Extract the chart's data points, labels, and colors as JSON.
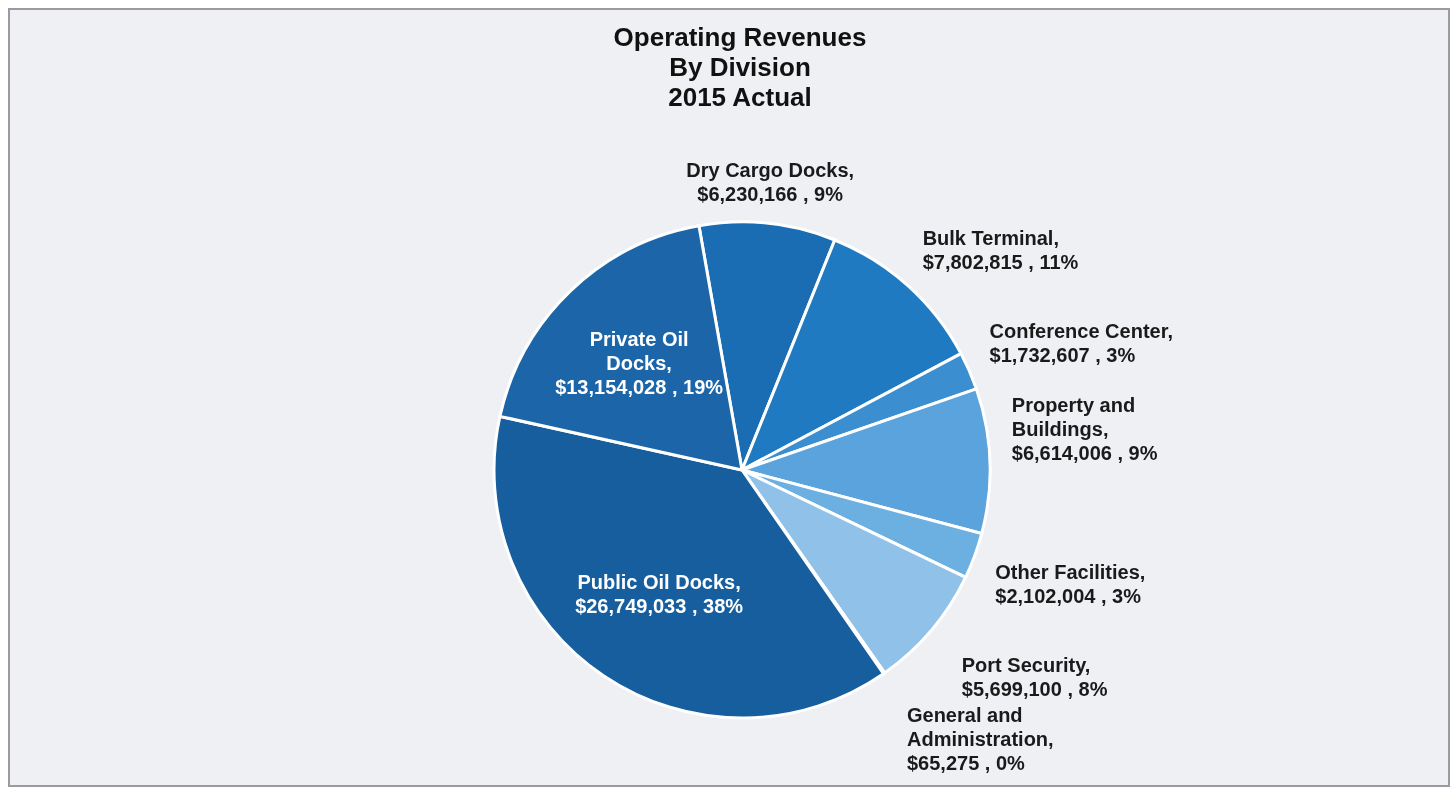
{
  "chart_data": {
    "type": "pie",
    "title": "Operating Revenues\nBy Division\n2015 Actual",
    "categories": [
      "Dry Cargo Docks",
      "Bulk Terminal",
      "Conference Center",
      "Property and Buildings",
      "Other Facilities",
      "Port Security",
      "General and Administration",
      "Public Oil Docks",
      "Private Oil Docks"
    ],
    "values": [
      6230166,
      7802815,
      1732607,
      6614006,
      2102004,
      5699100,
      65275,
      26749033,
      13154028
    ],
    "value_labels": [
      ", $6,230,166 , 9%",
      ", $7,802,815 , 11%",
      ", $1,732,607 , 3%",
      ", $6,614,006 , 9%",
      ", $2,102,004 , 3%",
      ", $5,699,100 , 8%",
      ", $65,275 , 0%",
      ", $26,749,033 , 38%",
      ", $13,154,028 , 19%"
    ],
    "colors": [
      "#1a6cb3",
      "#1f7ac2",
      "#3b8fd1",
      "#5aa3dc",
      "#6cb0e2",
      "#8fc1e9",
      "#aacfec",
      "#175e9e",
      "#1b65a8"
    ],
    "legend": false
  }
}
